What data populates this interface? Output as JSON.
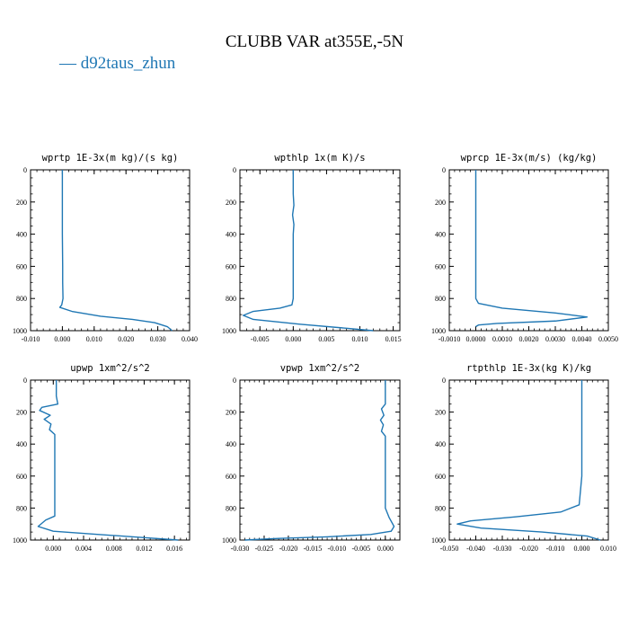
{
  "title": "CLUBB VAR at355E,-5N",
  "legend": {
    "label": "d92taus_zhun",
    "color": "#1f77b4"
  },
  "chart_data": [
    {
      "type": "line",
      "title": "wprtp  1E-3x(m kg)/(s kg)",
      "xlim": [
        -0.01,
        0.04
      ],
      "ylim": [
        1000,
        0
      ],
      "xticks": [
        "-0.010",
        "0.000",
        "0.010",
        "0.020",
        "0.030",
        "0.040"
      ],
      "xtick_values": [
        -0.01,
        0.0,
        0.01,
        0.02,
        0.03,
        0.04
      ],
      "yticks": [
        "0",
        "200",
        "400",
        "600",
        "800",
        "1000"
      ],
      "ytick_values": [
        0,
        200,
        400,
        600,
        800,
        1000
      ],
      "series": [
        {
          "color": "#1f77b4",
          "x": [
            0.0,
            0.0,
            0.0,
            0.0001,
            0.0001,
            0.0002,
            -0.0002,
            -0.0008,
            0.003,
            0.012,
            0.022,
            0.029,
            0.033,
            0.0345
          ],
          "y": [
            0,
            200,
            400,
            600,
            700,
            800,
            840,
            855,
            880,
            910,
            930,
            950,
            975,
            1000
          ]
        }
      ]
    },
    {
      "type": "line",
      "title": "wpthlp  1x(m K)/s",
      "xlim": [
        -0.008,
        0.016
      ],
      "ylim": [
        1000,
        0
      ],
      "xticks": [
        "-0.005",
        "0.000",
        "0.005",
        "0.010",
        "0.015"
      ],
      "xtick_values": [
        -0.005,
        0.0,
        0.005,
        0.01,
        0.015
      ],
      "yticks": [
        "0",
        "200",
        "400",
        "600",
        "800",
        "1000"
      ],
      "ytick_values": [
        0,
        200,
        400,
        600,
        800,
        1000
      ],
      "series": [
        {
          "color": "#1f77b4",
          "x": [
            0.0,
            0.0,
            0.0001,
            -0.0001,
            0.0001,
            0.0,
            0.0,
            0.0,
            0.0,
            -0.0002,
            -0.002,
            -0.006,
            -0.0075,
            -0.006,
            0.001,
            0.008,
            0.012
          ],
          "y": [
            0,
            150,
            220,
            280,
            340,
            400,
            600,
            700,
            800,
            840,
            860,
            880,
            905,
            930,
            960,
            985,
            1000
          ]
        }
      ]
    },
    {
      "type": "line",
      "title": "wprcp  1E-3x(m/s) (kg/kg)",
      "xlim": [
        -0.001,
        0.005
      ],
      "ylim": [
        1000,
        0
      ],
      "xticks": [
        "-0.0010",
        "0.0000",
        "0.0010",
        "0.0020",
        "0.0030",
        "0.0040",
        "0.0050"
      ],
      "xtick_values": [
        -0.001,
        0.0,
        0.001,
        0.002,
        0.003,
        0.004,
        0.005
      ],
      "yticks": [
        "0",
        "200",
        "400",
        "600",
        "800",
        "1000"
      ],
      "ytick_values": [
        0,
        200,
        400,
        600,
        800,
        1000
      ],
      "series": [
        {
          "color": "#1f77b4",
          "x": [
            0.0,
            0.0,
            0.0,
            0.0,
            0.0,
            0.0001,
            0.001,
            0.003,
            0.0042,
            0.003,
            0.0008,
            0.0001,
            0.0
          ],
          "y": [
            0,
            200,
            400,
            600,
            800,
            830,
            860,
            890,
            915,
            940,
            955,
            965,
            975
          ]
        }
      ]
    },
    {
      "type": "line",
      "title": "upwp   1xm^2/s^2",
      "xlim": [
        -0.003,
        0.018
      ],
      "ylim": [
        1000,
        0
      ],
      "xticks": [
        "0.000",
        "0.004",
        "0.008",
        "0.012",
        "0.016"
      ],
      "xtick_values": [
        0.0,
        0.004,
        0.008,
        0.012,
        0.016
      ],
      "yticks": [
        "0",
        "200",
        "400",
        "600",
        "800",
        "1000"
      ],
      "ytick_values": [
        0,
        200,
        400,
        600,
        800,
        1000
      ],
      "series": [
        {
          "color": "#1f77b4",
          "x": [
            0.0004,
            0.0004,
            0.0006,
            -0.0015,
            -0.0018,
            -0.0004,
            -0.0012,
            -0.0003,
            -0.0005,
            0.0002,
            0.0002,
            0.0002,
            0.0002,
            0.0002,
            -0.001,
            -0.002,
            0.0,
            0.006,
            0.012,
            0.0165
          ],
          "y": [
            0,
            100,
            150,
            170,
            190,
            220,
            245,
            275,
            310,
            340,
            400,
            600,
            700,
            850,
            875,
            915,
            945,
            965,
            985,
            1000
          ]
        }
      ]
    },
    {
      "type": "line",
      "title": "vpwp   1xm^2/s^2",
      "xlim": [
        -0.03,
        0.003
      ],
      "ylim": [
        1000,
        0
      ],
      "xticks": [
        "-0.030",
        "-0.025",
        "-0.020",
        "-0.015",
        "-0.010",
        "-0.005",
        "0.000"
      ],
      "xtick_values": [
        -0.03,
        -0.025,
        -0.02,
        -0.015,
        -0.01,
        -0.005,
        0.0
      ],
      "yticks": [
        "0",
        "200",
        "400",
        "600",
        "800",
        "1000"
      ],
      "ytick_values": [
        0,
        200,
        400,
        600,
        800,
        1000
      ],
      "series": [
        {
          "color": "#1f77b4",
          "x": [
            0.0,
            0.0,
            0.0,
            -0.0008,
            -0.0003,
            -0.001,
            -0.0004,
            -0.0008,
            0.0,
            0.0,
            0.0,
            0.0,
            0.0008,
            0.0018,
            0.0012,
            -0.003,
            -0.012,
            -0.022,
            -0.029
          ],
          "y": [
            0,
            120,
            150,
            180,
            220,
            250,
            280,
            320,
            350,
            400,
            600,
            800,
            860,
            915,
            945,
            965,
            980,
            990,
            1000
          ]
        }
      ]
    },
    {
      "type": "line",
      "title": "rtpthlp   1E-3x(kg K)/kg",
      "xlim": [
        -0.05,
        0.01
      ],
      "ylim": [
        1000,
        0
      ],
      "xticks": [
        "-0.050",
        "-0.040",
        "-0.030",
        "-0.020",
        "-0.010",
        "0.000",
        "0.010"
      ],
      "xtick_values": [
        -0.05,
        -0.04,
        -0.03,
        -0.02,
        -0.01,
        0.0,
        0.01
      ],
      "yticks": [
        "0",
        "200",
        "400",
        "600",
        "800",
        "1000"
      ],
      "ytick_values": [
        0,
        200,
        400,
        600,
        800,
        1000
      ],
      "series": [
        {
          "color": "#1f77b4",
          "x": [
            0.0,
            0.0,
            0.0,
            0.0,
            -0.001,
            -0.008,
            -0.025,
            -0.042,
            -0.047,
            -0.038,
            -0.015,
            0.002,
            0.007
          ],
          "y": [
            0,
            200,
            400,
            600,
            780,
            825,
            855,
            880,
            900,
            925,
            950,
            975,
            1000
          ]
        }
      ]
    }
  ]
}
